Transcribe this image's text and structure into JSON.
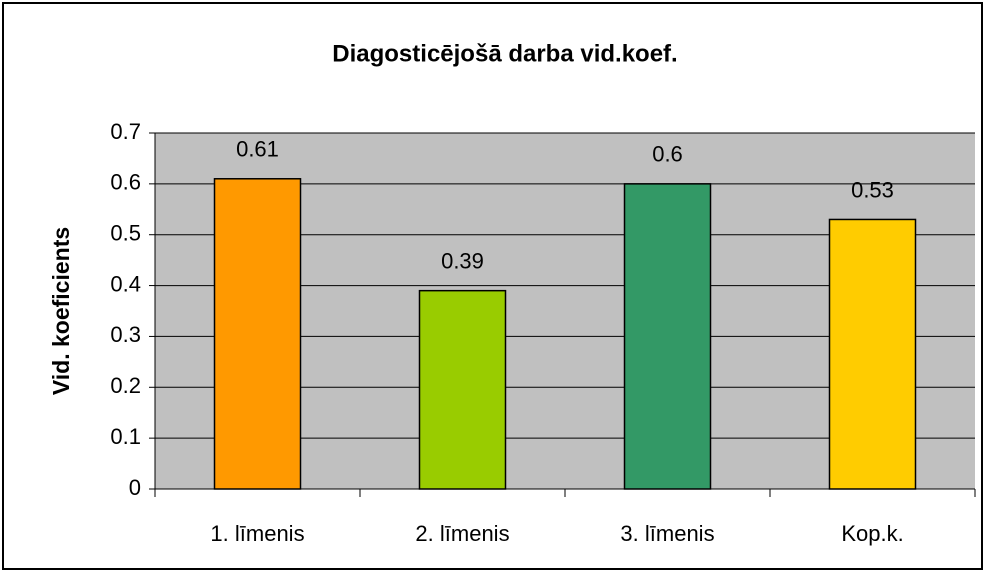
{
  "chart_data": {
    "type": "bar",
    "title": "Diagosticējošā darba vid.koef.",
    "y_label": "Vid. koeficients",
    "categories": [
      "1. līmenis",
      "2. līmenis",
      "3. līmenis",
      "Kop.k."
    ],
    "values": [
      0.61,
      0.39,
      0.6,
      0.53
    ],
    "colors": [
      "#ff9900",
      "#99cc00",
      "#339966",
      "#ffcc00"
    ],
    "ylim": [
      0,
      0.7
    ],
    "yticks": [
      0,
      0.1,
      0.2,
      0.3,
      0.4,
      0.5,
      0.6,
      0.7
    ],
    "grid": true
  }
}
